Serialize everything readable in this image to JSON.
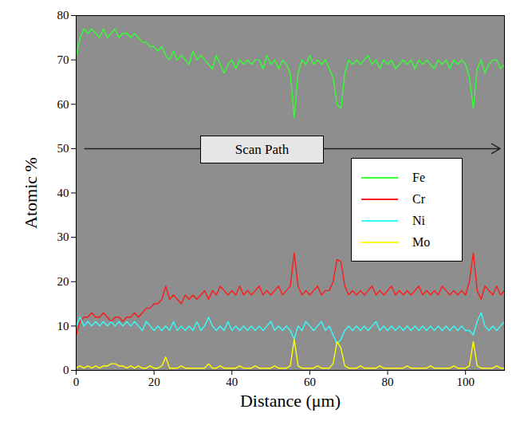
{
  "chart_data": {
    "type": "line",
    "xlabel": "Distance (μm)",
    "ylabel": "Atomic %",
    "annotations": [
      {
        "text": "Scan Path"
      }
    ],
    "legend": "right",
    "grid": false,
    "xlim": [
      0,
      110
    ],
    "xticks": [
      0,
      20,
      40,
      60,
      80,
      100
    ],
    "ylim": [
      0,
      80
    ],
    "yticks": [
      0,
      10,
      20,
      30,
      40,
      50,
      60,
      70,
      80
    ],
    "x": [
      0,
      1,
      2,
      3,
      4,
      5,
      6,
      7,
      8,
      9,
      10,
      11,
      12,
      13,
      14,
      15,
      16,
      17,
      18,
      19,
      20,
      21,
      22,
      23,
      24,
      25,
      26,
      27,
      28,
      29,
      30,
      31,
      32,
      33,
      34,
      35,
      36,
      37,
      38,
      39,
      40,
      41,
      42,
      43,
      44,
      45,
      46,
      47,
      48,
      49,
      50,
      51,
      52,
      53,
      54,
      55,
      56,
      57,
      58,
      59,
      60,
      61,
      62,
      63,
      64,
      65,
      66,
      67,
      68,
      69,
      70,
      71,
      72,
      73,
      74,
      75,
      76,
      77,
      78,
      79,
      80,
      81,
      82,
      83,
      84,
      85,
      86,
      87,
      88,
      89,
      90,
      91,
      92,
      93,
      94,
      95,
      96,
      97,
      98,
      99,
      100,
      101,
      102,
      103,
      104,
      105,
      106,
      107,
      108,
      109,
      110
    ],
    "series": [
      {
        "name": "Fe",
        "color": "#33ff33",
        "values": [
          71,
          75,
          77,
          76,
          77,
          76,
          75,
          77,
          75,
          76,
          77,
          75,
          76,
          76,
          75,
          76,
          75,
          74,
          74,
          73,
          73,
          72,
          73,
          71,
          70,
          72,
          70,
          71,
          70,
          69,
          72,
          70,
          71,
          70,
          69,
          68,
          71,
          69,
          67,
          69,
          70,
          68,
          70,
          69,
          70,
          69,
          70,
          70,
          68,
          71,
          69,
          70,
          68,
          70,
          69,
          67,
          57,
          67,
          70,
          69,
          71,
          69,
          70,
          69,
          70,
          68,
          66,
          60,
          59,
          67,
          70,
          69,
          70,
          69,
          70,
          71,
          69,
          70,
          68,
          70,
          69,
          70,
          68,
          69,
          70,
          69,
          70,
          68,
          70,
          69,
          70,
          69,
          68,
          70,
          69,
          70,
          68,
          70,
          69,
          70,
          69,
          66,
          59,
          68,
          70,
          67,
          69,
          70,
          70,
          68,
          69
        ]
      },
      {
        "name": "Cr",
        "color": "#ff1a1a",
        "values": [
          8,
          11,
          12,
          12,
          13,
          12,
          12,
          13,
          12,
          11,
          12,
          12,
          11,
          12,
          12,
          13,
          12,
          13,
          14,
          14,
          15,
          15,
          16,
          19,
          16,
          17,
          16,
          15,
          17,
          16,
          17,
          16,
          17,
          18,
          16,
          18,
          17,
          19,
          18,
          17,
          18,
          17,
          19,
          17,
          18,
          17,
          18,
          19,
          17,
          18,
          17,
          18,
          19,
          17,
          18,
          19,
          26.5,
          19,
          17,
          18,
          17,
          18,
          19,
          17,
          18,
          18,
          20,
          25,
          24.5,
          19,
          17,
          18,
          17,
          18,
          17,
          18,
          19,
          17,
          18,
          17,
          18,
          19,
          17,
          18,
          17,
          18,
          17,
          18,
          19,
          17,
          18,
          17,
          18,
          17,
          19,
          18,
          17,
          18,
          17,
          18,
          17,
          20,
          26.5,
          18,
          16,
          19,
          18,
          17,
          19,
          17,
          18
        ]
      },
      {
        "name": "Ni",
        "color": "#33ffff",
        "values": [
          10,
          12,
          10,
          11,
          10,
          11,
          10,
          11,
          10,
          11,
          10,
          11,
          10,
          11,
          10,
          11,
          10,
          9,
          11,
          10,
          9,
          10,
          9,
          10,
          9,
          11,
          9,
          10,
          9,
          10,
          9,
          11,
          9,
          10,
          12,
          10,
          9,
          10,
          9,
          11,
          9,
          10,
          9,
          10,
          9,
          10,
          9,
          10,
          9,
          10,
          11,
          9,
          10,
          9,
          10,
          9,
          7,
          10,
          9,
          11,
          10,
          9,
          10,
          11,
          9,
          10,
          8,
          6,
          7,
          9,
          10,
          9,
          10,
          9,
          10,
          9,
          10,
          11,
          9,
          10,
          9,
          10,
          9,
          10,
          9,
          10,
          9,
          10,
          9,
          10,
          9,
          10,
          9,
          10,
          9,
          10,
          9,
          10,
          9,
          10,
          9,
          9,
          8,
          11,
          13,
          10,
          9,
          10,
          9,
          10,
          11
        ]
      },
      {
        "name": "Mo",
        "color": "#ffff00",
        "values": [
          0.5,
          1,
          0.5,
          1,
          0.5,
          1,
          0.5,
          1,
          1,
          1.5,
          1.5,
          1,
          1,
          0.5,
          1,
          0.5,
          1,
          0.5,
          0.5,
          1,
          0.5,
          0.5,
          1,
          3,
          0.5,
          0.5,
          0.5,
          1,
          0.5,
          0.5,
          0.5,
          0.5,
          0.5,
          0.5,
          1.5,
          0.5,
          0.5,
          1,
          0.5,
          0.5,
          0.5,
          0.5,
          1,
          0.5,
          0.5,
          0.5,
          1,
          0.5,
          0.5,
          0.5,
          0.5,
          1,
          0.5,
          0.5,
          0.5,
          1,
          7,
          1,
          0.5,
          0.5,
          0.5,
          0.5,
          1,
          0.5,
          0.5,
          0.5,
          1.5,
          6.5,
          5,
          1,
          0.5,
          0.5,
          0.5,
          1,
          0.5,
          0.5,
          0.5,
          0.5,
          1,
          0.5,
          0.5,
          0.5,
          0.5,
          0.5,
          0.5,
          1,
          0.5,
          0.5,
          0.5,
          0.5,
          0.5,
          1,
          0.5,
          0.5,
          0.5,
          0.5,
          0.5,
          1,
          0.5,
          0.5,
          0.5,
          1,
          6.5,
          1,
          0.5,
          0.5,
          0.5,
          0.5,
          1,
          0.5,
          0.5
        ]
      }
    ]
  }
}
